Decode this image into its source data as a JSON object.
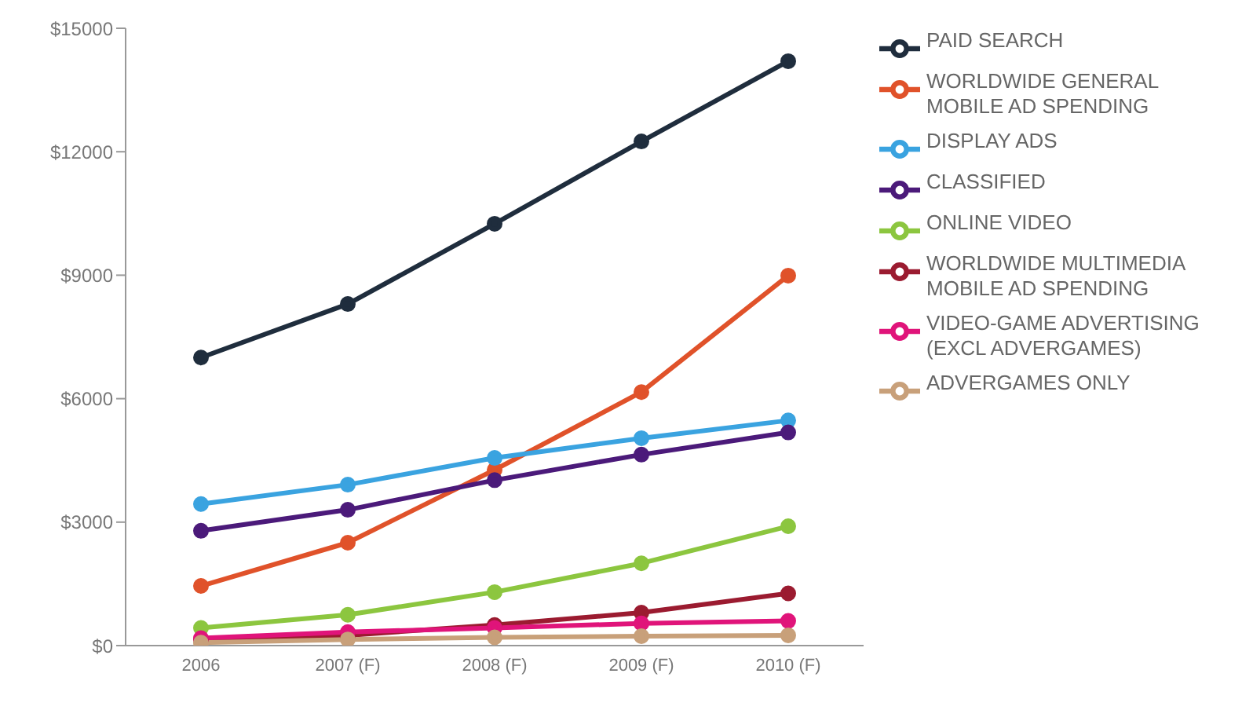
{
  "chart_data": {
    "type": "line",
    "categories": [
      "2006",
      "2007 (F)",
      "2008 (F)",
      "2009 (F)",
      "2010 (F)"
    ],
    "series": [
      {
        "name": "PAID SEARCH",
        "color": "#1f2d3d",
        "values": [
          7000,
          8300,
          10250,
          12250,
          14200
        ]
      },
      {
        "name": "WORLDWIDE GENERAL MOBILE AD SPENDING",
        "color": "#e0522a",
        "values": [
          1450,
          2500,
          4270,
          6160,
          8990
        ]
      },
      {
        "name": "DISPLAY ADS",
        "color": "#3aa3e0",
        "values": [
          3440,
          3910,
          4560,
          5040,
          5470
        ]
      },
      {
        "name": "CLASSIFIED",
        "color": "#4b1a7a",
        "values": [
          2790,
          3300,
          4020,
          4640,
          5180
        ]
      },
      {
        "name": "ONLINE VIDEO",
        "color": "#8cc63f",
        "values": [
          430,
          750,
          1300,
          2000,
          2900
        ]
      },
      {
        "name": "WORLDWIDE MULTIMEDIA MOBILE AD SPENDING",
        "color": "#9b1b30",
        "values": [
          150,
          250,
          500,
          800,
          1270
        ]
      },
      {
        "name": "VIDEO-GAME ADVERTISING (EXCL ADVERGAMES)",
        "color": "#e0147a",
        "values": [
          180,
          330,
          430,
          540,
          600
        ]
      },
      {
        "name": "ADVERGAMES ONLY",
        "color": "#c8a07a",
        "values": [
          70,
          150,
          200,
          230,
          250
        ]
      }
    ],
    "ylim": [
      0,
      15000
    ],
    "yticks": [
      {
        "value": 0,
        "label": "$0"
      },
      {
        "value": 3000,
        "label": "$3000"
      },
      {
        "value": 6000,
        "label": "$6000"
      },
      {
        "value": 9000,
        "label": "$9000"
      },
      {
        "value": 12000,
        "label": "$12000"
      },
      {
        "value": 15000,
        "label": "$15000"
      }
    ],
    "grid": false,
    "legend": "right",
    "marker": "circle",
    "line_style": "solid"
  }
}
